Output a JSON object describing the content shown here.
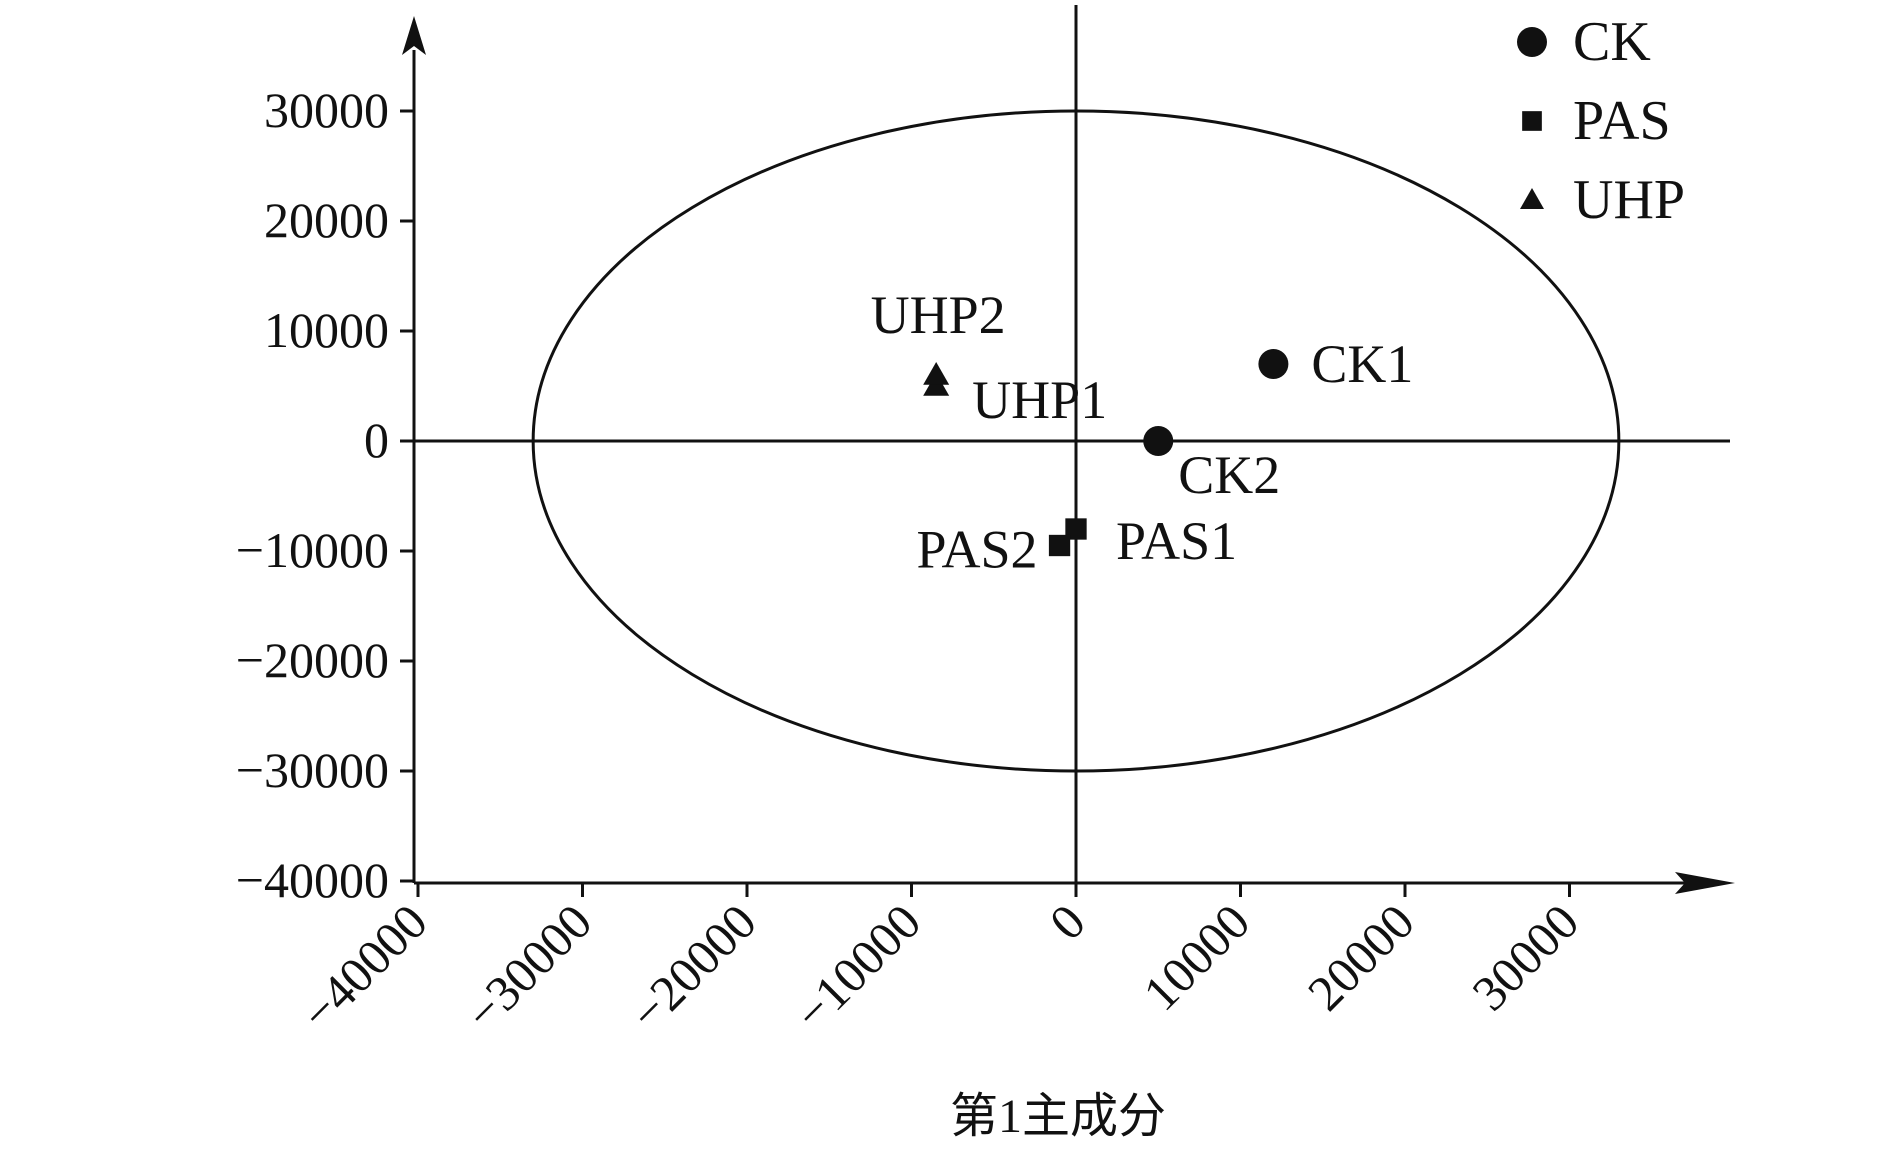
{
  "chart_data": {
    "type": "scatter",
    "title": "",
    "xlabel": "第1主成分",
    "ylabel": "",
    "xlim": [
      -40000,
      40000
    ],
    "ylim": [
      -40000,
      40000
    ],
    "x_ticks": [
      -40000,
      -30000,
      -20000,
      -10000,
      0,
      10000,
      20000,
      30000
    ],
    "x_tick_labels": [
      "−40000",
      "−30000",
      "−20000",
      "−10000",
      "0",
      "10000",
      "20000",
      "30000"
    ],
    "y_ticks": [
      30000,
      20000,
      10000,
      0,
      -10000,
      -20000,
      -30000,
      -40000
    ],
    "y_tick_labels": [
      "30000",
      "20000",
      "10000",
      "0",
      "−10000",
      "−20000",
      "−30000",
      "−40000"
    ],
    "grid": false,
    "legend_position": "top-right",
    "confidence_ellipse": {
      "center": [
        0,
        0
      ],
      "x_radius": 33000,
      "y_radius": 30000
    },
    "series": [
      {
        "name": "CK",
        "marker": "circle",
        "color": "#111111",
        "points": [
          {
            "label": "CK1",
            "x": 12000,
            "y": 7000
          },
          {
            "label": "CK2",
            "x": 5000,
            "y": 0
          }
        ]
      },
      {
        "name": "PAS",
        "marker": "square",
        "color": "#111111",
        "points": [
          {
            "label": "PAS1",
            "x": 0,
            "y": -8000
          },
          {
            "label": "PAS2",
            "x": -1000,
            "y": -9500
          }
        ]
      },
      {
        "name": "UHP",
        "marker": "triangle",
        "color": "#111111",
        "points": [
          {
            "label": "UHP1",
            "x": -8500,
            "y": 5000
          },
          {
            "label": "UHP2",
            "x": -8500,
            "y": 6000
          }
        ]
      }
    ]
  }
}
